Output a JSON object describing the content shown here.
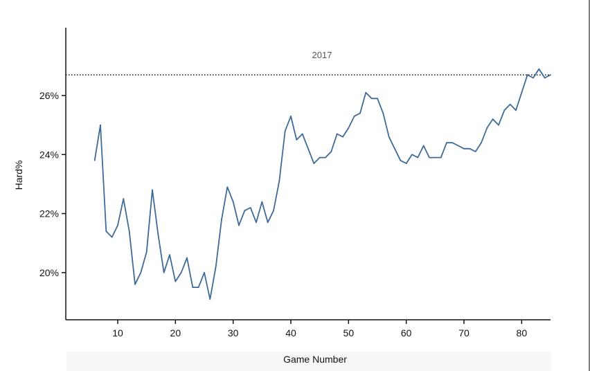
{
  "chart_data": {
    "type": "line",
    "xlabel": "Game Number",
    "ylabel": "Hard%",
    "xlim": [
      1,
      85
    ],
    "ylim": [
      18.4,
      28.3
    ],
    "x_ticks": [
      10,
      20,
      30,
      40,
      50,
      60,
      70,
      80
    ],
    "y_ticks": [
      20,
      22,
      24,
      26
    ],
    "y_tick_labels": [
      "20%",
      "22%",
      "24%",
      "26%"
    ],
    "grid": false,
    "reference_line": {
      "value": 26.7,
      "label": "2017",
      "style": "dotted"
    },
    "series": [
      {
        "color": "#3d6a99",
        "x": [
          6,
          7,
          8,
          9,
          10,
          11,
          12,
          13,
          14,
          15,
          16,
          17,
          18,
          19,
          20,
          21,
          22,
          23,
          24,
          25,
          26,
          27,
          28,
          29,
          30,
          31,
          32,
          33,
          34,
          35,
          36,
          37,
          38,
          39,
          40,
          41,
          42,
          43,
          44,
          45,
          46,
          47,
          48,
          49,
          50,
          51,
          52,
          53,
          54,
          55,
          56,
          57,
          58,
          59,
          60,
          61,
          62,
          63,
          64,
          65,
          66,
          67,
          68,
          69,
          70,
          71,
          72,
          73,
          74,
          75,
          76,
          77,
          78,
          79,
          80,
          81,
          82,
          83,
          84,
          85
        ],
        "y": [
          23.8,
          25.0,
          21.4,
          21.2,
          21.6,
          22.5,
          21.4,
          19.6,
          20.0,
          20.7,
          22.8,
          21.3,
          20.0,
          20.6,
          19.7,
          20.0,
          20.5,
          19.5,
          19.5,
          20.0,
          19.1,
          20.2,
          21.8,
          22.9,
          22.4,
          21.6,
          22.1,
          22.2,
          21.7,
          22.4,
          21.7,
          22.1,
          23.1,
          24.8,
          25.3,
          24.5,
          24.7,
          24.2,
          23.7,
          23.9,
          23.9,
          24.1,
          24.7,
          24.6,
          24.9,
          25.3,
          25.4,
          26.1,
          25.9,
          25.9,
          25.4,
          24.6,
          24.2,
          23.8,
          23.7,
          24.0,
          23.9,
          24.3,
          23.9,
          23.9,
          23.9,
          24.4,
          24.4,
          24.3,
          24.2,
          24.2,
          24.1,
          24.4,
          24.9,
          25.2,
          25.0,
          25.5,
          25.7,
          25.5,
          26.1,
          26.7,
          26.6,
          26.9,
          26.6,
          26.7
        ]
      }
    ]
  }
}
